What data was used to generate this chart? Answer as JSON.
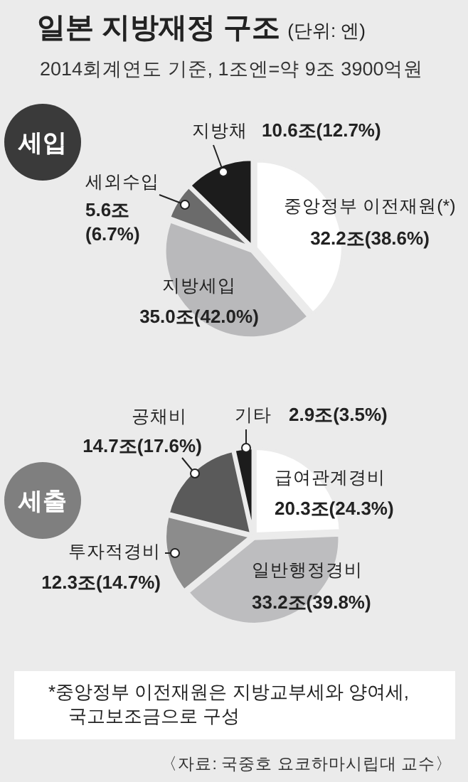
{
  "chart_data": [
    {
      "type": "pie",
      "title": "일본 지방재정 구조",
      "subtitle": "(단위: 엔)",
      "annotations": [
        "2014회계연도 기준, 1조엔=약 9조 3900억원",
        "세입"
      ],
      "categories": [
        "중앙정부 이전재원(*)",
        "지방세입",
        "세외수입",
        "지방채"
      ],
      "values": [
        32.2,
        35.0,
        5.6,
        10.6
      ],
      "value_labels": [
        "32.2조(38.6%)",
        "35.0조(42.0%)",
        "5.6조(6.7%)",
        "10.6조(12.7%)"
      ],
      "colors": [
        "#ffffff",
        "#b9b9bb",
        "#6b6b6b",
        "#1c1c1c"
      ]
    },
    {
      "type": "pie",
      "title": "세출",
      "annotations": [
        "*중앙정부 이전재원은 지방교부세와 양여세, 국고보조금으로 구성",
        "〈자료: 국중호 요코하마시립대 교수〉"
      ],
      "categories": [
        "급여관계경비",
        "일반행정경비",
        "투자적경비",
        "공채비",
        "기타"
      ],
      "values": [
        20.3,
        33.2,
        12.3,
        14.7,
        2.9
      ],
      "value_labels": [
        "20.3조(24.3%)",
        "33.2조(39.8%)",
        "12.3조(14.7%)",
        "14.7조(17.6%)",
        "2.9조(3.5%)"
      ],
      "colors": [
        "#ffffff",
        "#bdbdbf",
        "#8c8c8c",
        "#5a5a5a",
        "#1c1c1c"
      ]
    }
  ]
}
